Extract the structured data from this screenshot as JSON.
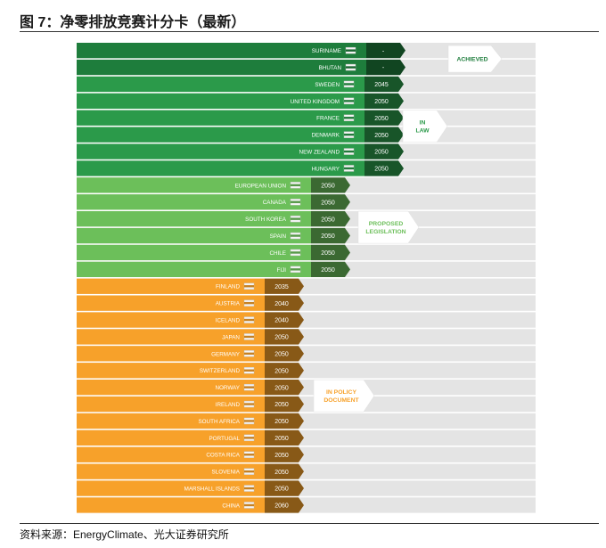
{
  "figure": {
    "title": "图 7：净零排放竞赛计分卡（最新）",
    "source": "资料来源：EnergyClimate、光大证券研究所"
  },
  "chart_data": {
    "type": "table",
    "groups": [
      {
        "label": "ACHIEVED",
        "color": "#1e7d3c",
        "rows": [
          {
            "country": "SURINAME",
            "year": "-"
          },
          {
            "country": "BHUTAN",
            "year": "-"
          }
        ]
      },
      {
        "label": "IN LAW",
        "color": "#2b9a4a",
        "rows": [
          {
            "country": "SWEDEN",
            "year": "2045"
          },
          {
            "country": "UNITED KINGDOM",
            "year": "2050"
          },
          {
            "country": "FRANCE",
            "year": "2050"
          },
          {
            "country": "DENMARK",
            "year": "2050"
          },
          {
            "country": "NEW ZEALAND",
            "year": "2050"
          },
          {
            "country": "HUNGARY",
            "year": "2050"
          }
        ]
      },
      {
        "label": "PROPOSED LEGISLATION",
        "color": "#6cbf5a",
        "rows": [
          {
            "country": "EUROPEAN UNION",
            "year": "2050"
          },
          {
            "country": "CANADA",
            "year": "2050"
          },
          {
            "country": "SOUTH KOREA",
            "year": "2050"
          },
          {
            "country": "SPAIN",
            "year": "2050"
          },
          {
            "country": "CHILE",
            "year": "2050"
          },
          {
            "country": "FIJI",
            "year": "2050"
          }
        ]
      },
      {
        "label": "IN POLICY DOCUMENT",
        "color": "#f7a12a",
        "rows": [
          {
            "country": "FINLAND",
            "year": "2035"
          },
          {
            "country": "AUSTRIA",
            "year": "2040"
          },
          {
            "country": "ICELAND",
            "year": "2040"
          },
          {
            "country": "JAPAN",
            "year": "2050"
          },
          {
            "country": "GERMANY",
            "year": "2050"
          },
          {
            "country": "SWITZERLAND",
            "year": "2050"
          },
          {
            "country": "NORWAY",
            "year": "2050"
          },
          {
            "country": "IRELAND",
            "year": "2050"
          },
          {
            "country": "SOUTH AFRICA",
            "year": "2050"
          },
          {
            "country": "PORTUGAL",
            "year": "2050"
          },
          {
            "country": "COSTA RICA",
            "year": "2050"
          },
          {
            "country": "SLOVENIA",
            "year": "2050"
          },
          {
            "country": "MARSHALL ISLANDS",
            "year": "2050"
          },
          {
            "country": "CHINA",
            "year": "2060"
          }
        ]
      }
    ]
  }
}
